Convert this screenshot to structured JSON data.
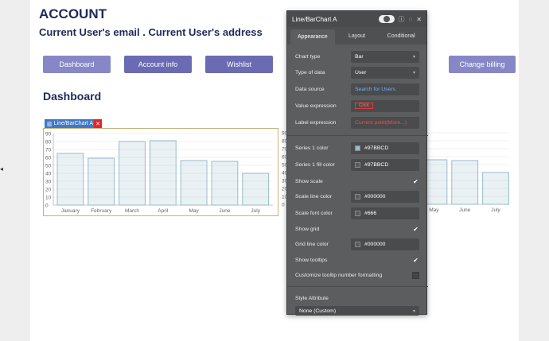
{
  "page": {
    "title": "ACCOUNT",
    "subtitle": "Current User's email  . Current User's address",
    "dashboard_title": "Dashboard"
  },
  "nav": {
    "buttons": [
      {
        "label": "Dashboard"
      },
      {
        "label": "Account info"
      },
      {
        "label": "Wishlist"
      },
      {
        "label": "Change billing"
      }
    ]
  },
  "chart_tag": {
    "label": "Line/BarChart A"
  },
  "chart_data": [
    {
      "type": "bar",
      "categories": [
        "January",
        "February",
        "March",
        "April",
        "May",
        "June",
        "July"
      ],
      "values": [
        65,
        59,
        80,
        81,
        56,
        55,
        40
      ],
      "yticks": [
        0,
        10,
        20,
        30,
        40,
        50,
        60,
        70,
        80,
        90
      ],
      "ylim": [
        0,
        90
      ],
      "grid": true,
      "color": "#97BBCD"
    },
    {
      "type": "bar",
      "categories": [
        "May",
        "June",
        "July"
      ],
      "values": [
        56,
        55,
        40
      ],
      "yticks": [
        0,
        10,
        20,
        30,
        40,
        50,
        60,
        70,
        80,
        90
      ],
      "ylim": [
        0,
        90
      ],
      "grid": true,
      "color": "#97BBCD"
    }
  ],
  "panel": {
    "title": "Line/BarChart A",
    "tabs": [
      {
        "label": "Appearance"
      },
      {
        "label": "Layout"
      },
      {
        "label": "Conditional"
      }
    ],
    "rows": {
      "chart_type": {
        "label": "Chart type",
        "value": "Bar"
      },
      "type_of_data": {
        "label": "Type of data",
        "value": "User"
      },
      "data_source": {
        "label": "Data source",
        "value": "Search for Users"
      },
      "value_expression": {
        "label": "Value expression",
        "value": "Click"
      },
      "label_expression": {
        "label": "Label expression",
        "value": "Current point(More...)"
      },
      "series1_color": {
        "label": "Series 1 color",
        "value": "#97BBCD"
      },
      "series1_fill_color": {
        "label": "Series 1 fill color",
        "value": "#97BBCD"
      },
      "show_scale": {
        "label": "Show scale"
      },
      "scale_line_color": {
        "label": "Scale line color",
        "value": "#000000"
      },
      "scale_font_color": {
        "label": "Scale font color",
        "value": "#666"
      },
      "show_grid": {
        "label": "Show grid"
      },
      "grid_line_color": {
        "label": "Grid line color",
        "value": "#000000"
      },
      "show_tooltips": {
        "label": "Show tooltips"
      },
      "customize_tooltip": {
        "label": "Customize tooltip number formatting"
      },
      "style_attribute": {
        "label": "Style Attribute",
        "value": "None (Custom)"
      }
    }
  }
}
